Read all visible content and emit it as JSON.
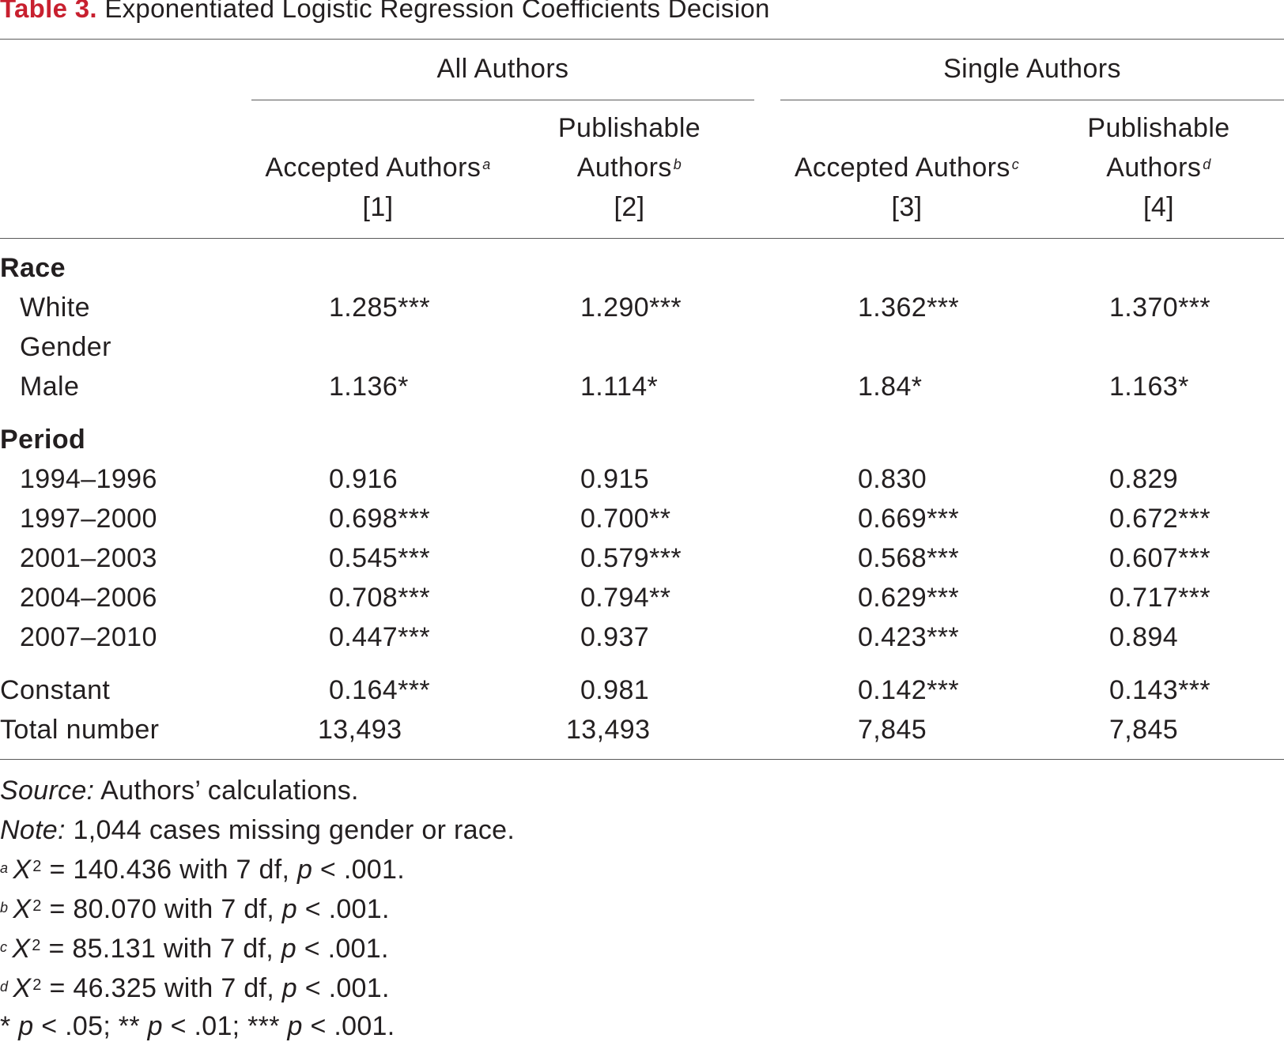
{
  "caption": {
    "label": "Table 3.",
    "title": "Exponentiated Logistic Regression Coefficients Decision"
  },
  "groups": [
    {
      "label": "All Authors"
    },
    {
      "label": "Single Authors"
    }
  ],
  "columns": [
    {
      "line1": "",
      "line2": "Accepted Authors",
      "fn": "a",
      "num": "[1]"
    },
    {
      "line1": "Publishable",
      "line2": "Authors",
      "fn": "b",
      "num": "[2]"
    },
    {
      "line1": "",
      "line2": "Accepted Authors",
      "fn": "c",
      "num": "[3]"
    },
    {
      "line1": "Publishable",
      "line2": "Authors",
      "fn": "d",
      "num": "[4]"
    }
  ],
  "sections": {
    "race": "Race",
    "period": "Period"
  },
  "rows": {
    "white": {
      "label": "White",
      "values": [
        "1.285***",
        "1.290***",
        "1.362***",
        "1.370***"
      ]
    },
    "gender": {
      "label": "Gender"
    },
    "male": {
      "label": "Male",
      "values": [
        "1.136*",
        "1.114*",
        "1.84*",
        "1.163*"
      ]
    },
    "p1994": {
      "label": "1994–1996",
      "values": [
        "0.916",
        "0.915",
        "0.830",
        "0.829"
      ]
    },
    "p1997": {
      "label": "1997–2000",
      "values": [
        "0.698***",
        "0.700**",
        "0.669***",
        "0.672***"
      ]
    },
    "p2001": {
      "label": "2001–2003",
      "values": [
        "0.545***",
        "0.579***",
        "0.568***",
        "0.607***"
      ]
    },
    "p2004": {
      "label": "2004–2006",
      "values": [
        "0.708***",
        "0.794**",
        "0.629***",
        "0.717***"
      ]
    },
    "p2007": {
      "label": "2007–2010",
      "values": [
        "0.447***",
        "0.937",
        "0.423***",
        "0.894"
      ]
    },
    "constant": {
      "label": "Constant",
      "values": [
        "0.164***",
        "0.981",
        "0.142***",
        "0.143***"
      ]
    },
    "total": {
      "label": "Total number",
      "values": [
        "13,493",
        "13,493",
        "7,845",
        "7,845"
      ]
    }
  },
  "notes": {
    "source_label": "Source:",
    "source_text": " Authors’ calculations.",
    "note_label": "Note:",
    "note_text": " 1,044 cases missing gender or race.",
    "footnotes": [
      {
        "mark": "a",
        "stat": "X",
        "sq": "2",
        "eq": " = 140.436 with 7 df, ",
        "p": "p",
        "rest": " < .001."
      },
      {
        "mark": "b",
        "stat": "X",
        "sq": "2",
        "eq": " = 80.070 with 7 df, ",
        "p": "p",
        "rest": " < .001."
      },
      {
        "mark": "c",
        "stat": "X",
        "sq": "2",
        "eq": " = 85.131 with 7 df, ",
        "p": "p",
        "rest": " < .001."
      },
      {
        "mark": "d",
        "stat": "X",
        "sq": "2",
        "eq": " = 46.325 with 7 df, ",
        "p": "p",
        "rest": " < .001."
      }
    ],
    "sig": {
      "s1": "* ",
      "p1": "p",
      "t1": " < .05; ** ",
      "p2": "p",
      "t2": " < .01; *** ",
      "p3": "p",
      "t3": " < .001."
    }
  }
}
